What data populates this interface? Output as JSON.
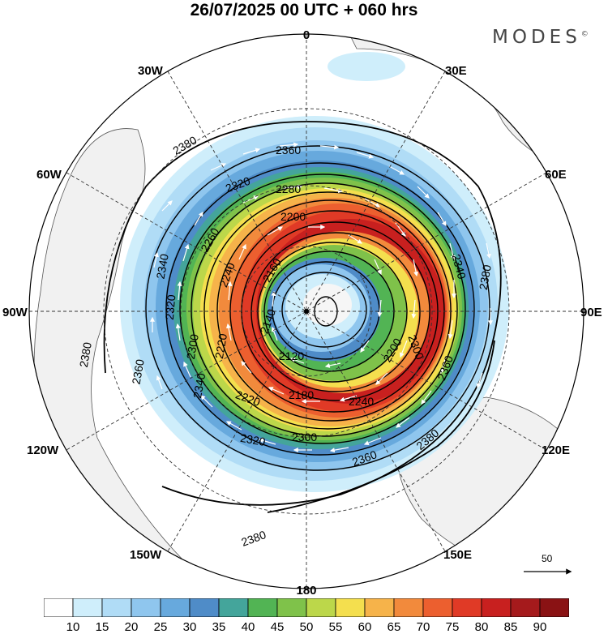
{
  "title": "26/07/2025  00 UTC  + 060 hrs",
  "brand": "MODES",
  "brand_mark": "©",
  "longitude_labels": {
    "top": "0",
    "right": "90E",
    "bottom": "180",
    "left": "90W",
    "n30e": "30E",
    "n60e": "60E",
    "n120e": "120E",
    "n150e": "150E",
    "n30w": "30W",
    "n60w": "60W",
    "n120w": "120W",
    "n150w": "150W"
  },
  "contour_labels": {
    "c2380a": "2380",
    "c2380b": "2380",
    "c2380c": "2380",
    "c2380d": "2380",
    "c2380e": "2380",
    "c2360a": "2360",
    "c2360b": "2360",
    "c2360c": "2360",
    "c2360d": "2360",
    "c2340a": "2340",
    "c2340b": "2340",
    "c2340c": "2340",
    "c2320a": "2320",
    "c2320b": "2320",
    "c2320c": "2320",
    "c2300a": "2300",
    "c2300b": "2300",
    "c2300c": "2300",
    "c2280": "2280",
    "c2260": "2260",
    "c2240a": "2240",
    "c2240b": "2240",
    "c2220a": "2220",
    "c2220b": "2220",
    "c2200a": "2200",
    "c2200b": "2200",
    "c2180": "2180",
    "c2160": "2160",
    "c2140": "2140",
    "c2120": "2120"
  },
  "vector_scale_label": "50",
  "colorbar": {
    "labels": [
      "10",
      "15",
      "20",
      "25",
      "30",
      "35",
      "40",
      "45",
      "50",
      "55",
      "60",
      "65",
      "70",
      "75",
      "80",
      "85",
      "90"
    ],
    "colors": [
      "#ffffff",
      "#cfeefb",
      "#b0dcf6",
      "#8fc6ee",
      "#67a9dd",
      "#4f8cc8",
      "#44a59b",
      "#52b454",
      "#7fc24a",
      "#bcd74a",
      "#f4df4e",
      "#f6b34a",
      "#f28a3c",
      "#ec5f2f",
      "#e03a26",
      "#c8201f",
      "#a51a1c",
      "#8a1214"
    ]
  },
  "colors": {
    "jet_core": "#c8201f",
    "land": "#f1f1f1",
    "coast": "#555555"
  }
}
